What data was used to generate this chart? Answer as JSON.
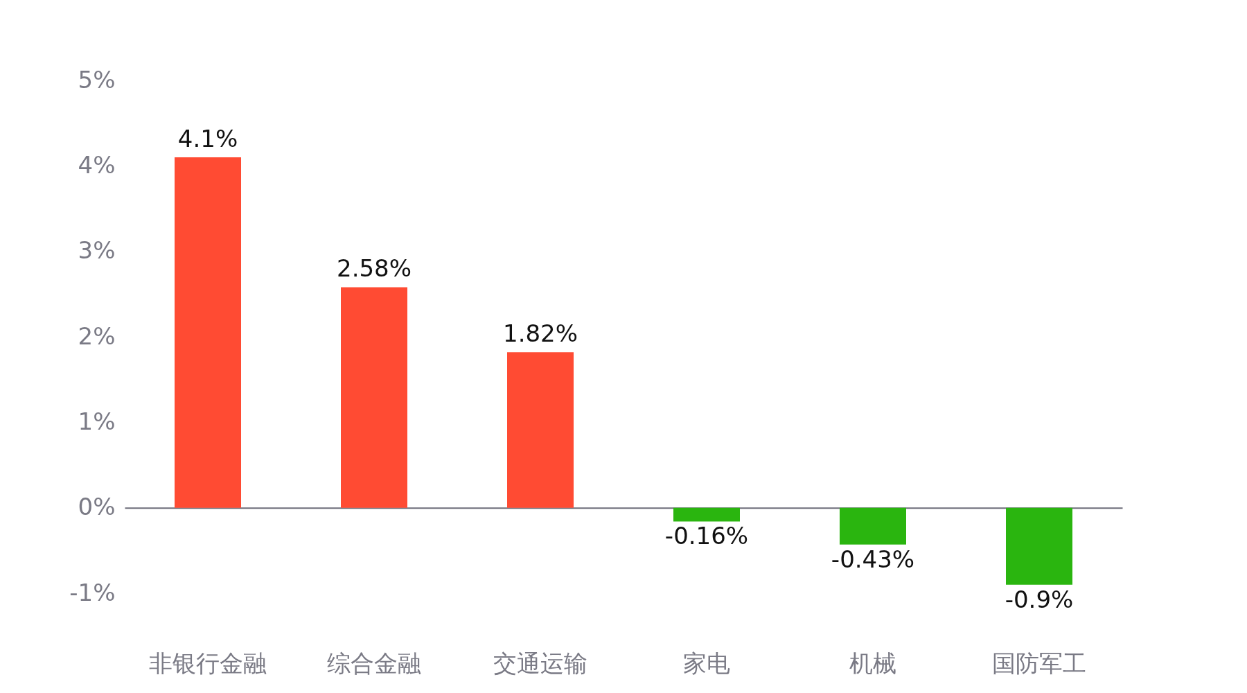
{
  "chart_data": {
    "type": "bar",
    "categories": [
      "非银行金融",
      "综合金融",
      "交通运输",
      "家电",
      "机械",
      "国防军工"
    ],
    "values": [
      4.1,
      2.58,
      1.82,
      -0.16,
      -0.43,
      -0.9
    ],
    "colors": [
      "#ff4b33",
      "#ff4b33",
      "#ff4b33",
      "#2ab50f",
      "#2ab50f",
      "#2ab50f"
    ],
    "value_labels": [
      "4.1%",
      "2.58%",
      "1.82%",
      "-0.16%",
      "-0.43%",
      "-0.9%"
    ],
    "ylim": [
      -1,
      5
    ],
    "yticks": [
      {
        "value": -1,
        "label": "-1%"
      },
      {
        "value": 0,
        "label": "0%"
      },
      {
        "value": 1,
        "label": "1%"
      },
      {
        "value": 2,
        "label": "2%"
      },
      {
        "value": 3,
        "label": "3%"
      },
      {
        "value": 4,
        "label": "4%"
      },
      {
        "value": 5,
        "label": "5%"
      }
    ],
    "legend": false
  }
}
